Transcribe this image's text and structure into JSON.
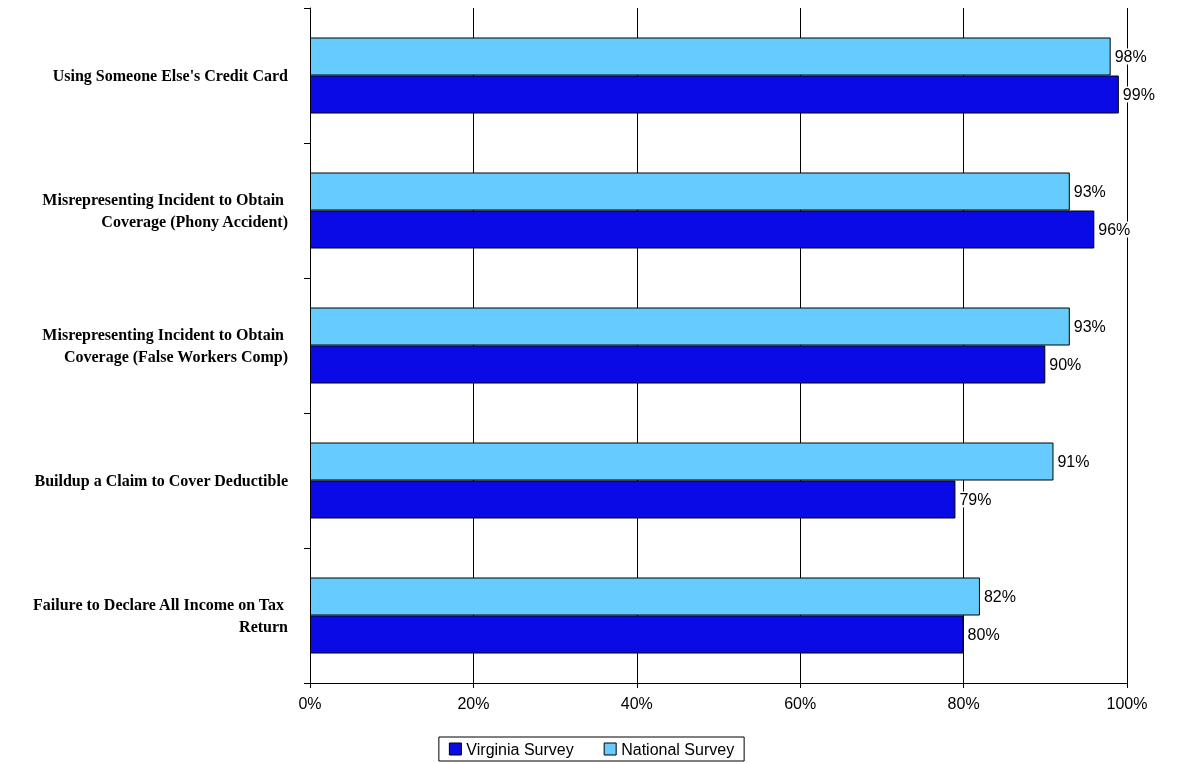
{
  "chart_data": {
    "type": "bar",
    "orientation": "horizontal",
    "categories": [
      "Using Someone Else's Credit Card",
      "Misrepresenting Incident to Obtain Coverage (Phony Accident)",
      "Misrepresenting Incident to Obtain Coverage (False Workers Comp)",
      "Buildup a Claim to Cover Deductible",
      "Failure to Declare All Income on Tax Return"
    ],
    "series": [
      {
        "name": "Virginia Survey",
        "color": "#0a0ae6",
        "values": [
          99,
          96,
          90,
          79,
          80
        ],
        "value_labels": [
          "99%",
          "96%",
          "90%",
          "79%",
          "80%"
        ]
      },
      {
        "name": "National Survey",
        "color": "#66ccff",
        "values": [
          98,
          93,
          93,
          91,
          82
        ],
        "value_labels": [
          "98%",
          "93%",
          "93%",
          "91%",
          "82%"
        ]
      }
    ],
    "xlim": [
      0,
      100
    ],
    "xticks": [
      {
        "value": 0,
        "label": "0%"
      },
      {
        "value": 20,
        "label": "20%"
      },
      {
        "value": 40,
        "label": "40%"
      },
      {
        "value": 60,
        "label": "60%"
      },
      {
        "value": 80,
        "label": "80%"
      },
      {
        "value": 100,
        "label": "100%"
      }
    ],
    "grid": "x",
    "legend": "bottom"
  }
}
